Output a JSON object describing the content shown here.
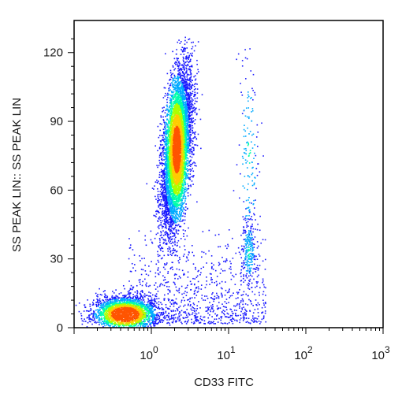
{
  "chart_data": {
    "type": "scatter",
    "style": "flow-cytometry density dot plot",
    "xlabel": "CD33 FITC",
    "ylabel": "SS PEAK LIN:: SS PEAK LIN",
    "x_scale": "log",
    "xlim": [
      0.1,
      1000
    ],
    "ylim": [
      0,
      134
    ],
    "x_ticks": [
      {
        "base": "10",
        "exp": "0"
      },
      {
        "base": "10",
        "exp": "1"
      },
      {
        "base": "10",
        "exp": "2"
      },
      {
        "base": "10",
        "exp": "3"
      }
    ],
    "y_ticks": [
      "0",
      "30",
      "60",
      "90",
      "120"
    ],
    "grid": false,
    "legend": "none",
    "density_colormap": [
      "#1a1aff",
      "#00aaff",
      "#00ffaa",
      "#aaff00",
      "#ffcc00",
      "#ff5500",
      "#ee0000"
    ],
    "populations": [
      {
        "center_x": 2.1,
        "center_y": 78,
        "count": 6500,
        "spread_log_x": 0.085,
        "spread_y": 17,
        "peak_y": 78
      },
      {
        "center_x": 0.45,
        "center_y": 7,
        "count": 2600,
        "spread_log_x": 0.2,
        "spread_y": 3.5,
        "peak_y": 6
      },
      {
        "center_x": 18,
        "center_y": 33,
        "count": 220,
        "spread_log_x": 0.05,
        "spread_y": 8,
        "peak_y": 33
      },
      {
        "center_x": 18,
        "center_y": 75,
        "count": 170,
        "spread_log_x": 0.07,
        "spread_y": 25,
        "peak_y": 75
      }
    ]
  }
}
